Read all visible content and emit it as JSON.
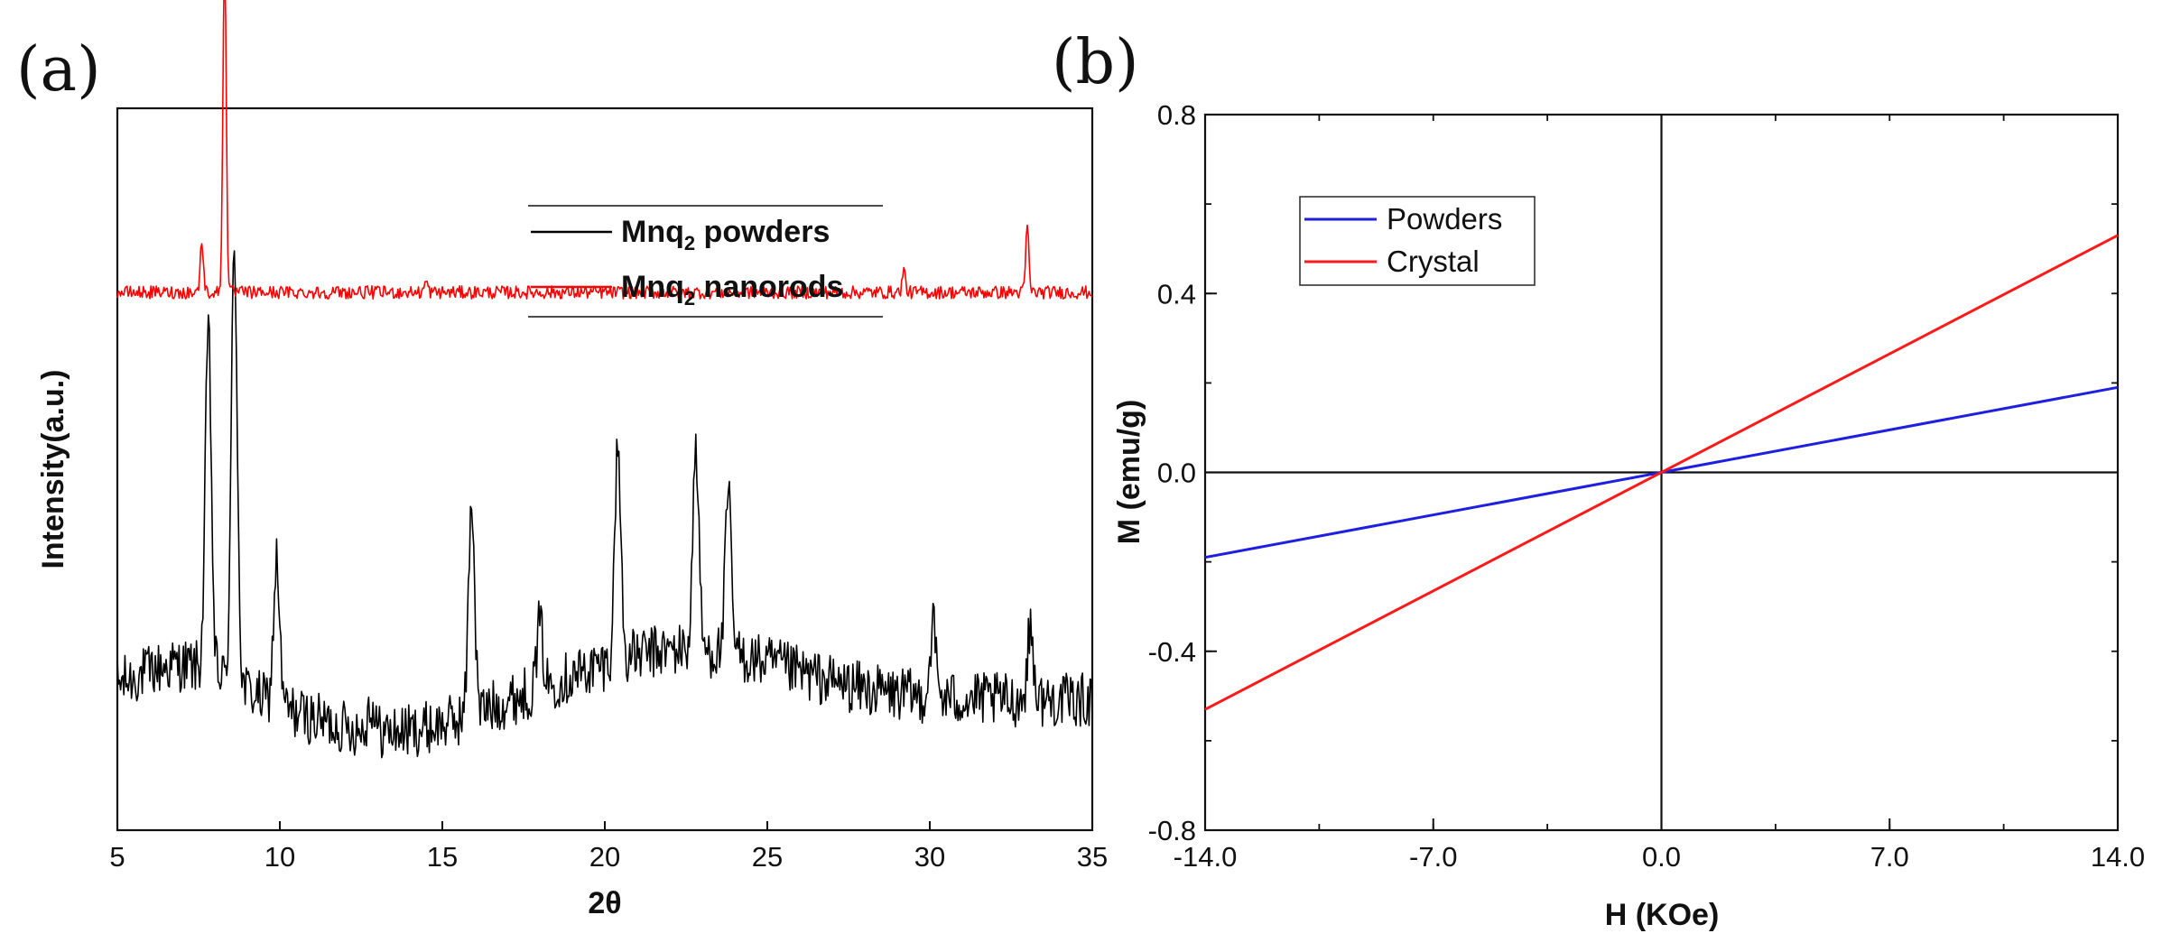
{
  "chart_data": [
    {
      "panel": "(a)",
      "type": "line",
      "title": "",
      "xlabel": "2θ",
      "ylabel": "Intensity(a.u.)",
      "xlim": [
        5,
        35
      ],
      "xticks": [
        5,
        10,
        15,
        20,
        25,
        30,
        35
      ],
      "yticks": [],
      "series": [
        {
          "name": "Mnq2 powders",
          "label_prefix": "Mnq",
          "label_sub": "2",
          "label_suffix": " powders",
          "color": "#000000",
          "baseline_level": 0.18,
          "peaks": [
            {
              "x": 7.8,
              "height": 0.47
            },
            {
              "x": 8.6,
              "height": 0.6
            },
            {
              "x": 9.9,
              "height": 0.2
            },
            {
              "x": 12.8,
              "height": 0.04
            },
            {
              "x": 15.9,
              "height": 0.3
            },
            {
              "x": 18.0,
              "height": 0.09
            },
            {
              "x": 20.4,
              "height": 0.3
            },
            {
              "x": 22.8,
              "height": 0.28
            },
            {
              "x": 23.8,
              "height": 0.22
            },
            {
              "x": 30.1,
              "height": 0.1
            },
            {
              "x": 33.1,
              "height": 0.1
            }
          ]
        },
        {
          "name": "Mnq2 nanorods",
          "label_prefix": "Mnq",
          "label_sub": "2",
          "label_suffix": " nanorods",
          "color": "#ff0000",
          "baseline_level": 0.745,
          "peaks": [
            {
              "x": 7.6,
              "height": 0.07
            },
            {
              "x": 8.3,
              "height": 0.48
            },
            {
              "x": 14.5,
              "height": 0.015
            },
            {
              "x": 29.2,
              "height": 0.03
            },
            {
              "x": 33.0,
              "height": 0.09
            }
          ]
        }
      ]
    },
    {
      "panel": "(b)",
      "type": "line",
      "title": "",
      "xlabel": "H (KOe)",
      "ylabel": "M (emu/g)",
      "xlim": [
        -14.0,
        14.0
      ],
      "ylim": [
        -0.8,
        0.8
      ],
      "xticks": [
        -14.0,
        -7.0,
        0.0,
        7.0,
        14.0
      ],
      "xtick_labels": [
        "-14.0",
        "-7.0",
        "0.0",
        "7.0",
        "14.0"
      ],
      "yticks": [
        -0.8,
        -0.4,
        0.0,
        0.4,
        0.8
      ],
      "ytick_labels": [
        "-0.8",
        "-0.4",
        "0.0",
        "0.4",
        "0.8"
      ],
      "series": [
        {
          "name": "Powders",
          "color": "#1f1fe0",
          "x": [
            -14.0,
            14.0
          ],
          "y": [
            -0.19,
            0.19
          ]
        },
        {
          "name": "Crystal",
          "color": "#ff1a1a",
          "x": [
            -14.0,
            14.0
          ],
          "y": [
            -0.53,
            0.53
          ]
        }
      ]
    }
  ]
}
